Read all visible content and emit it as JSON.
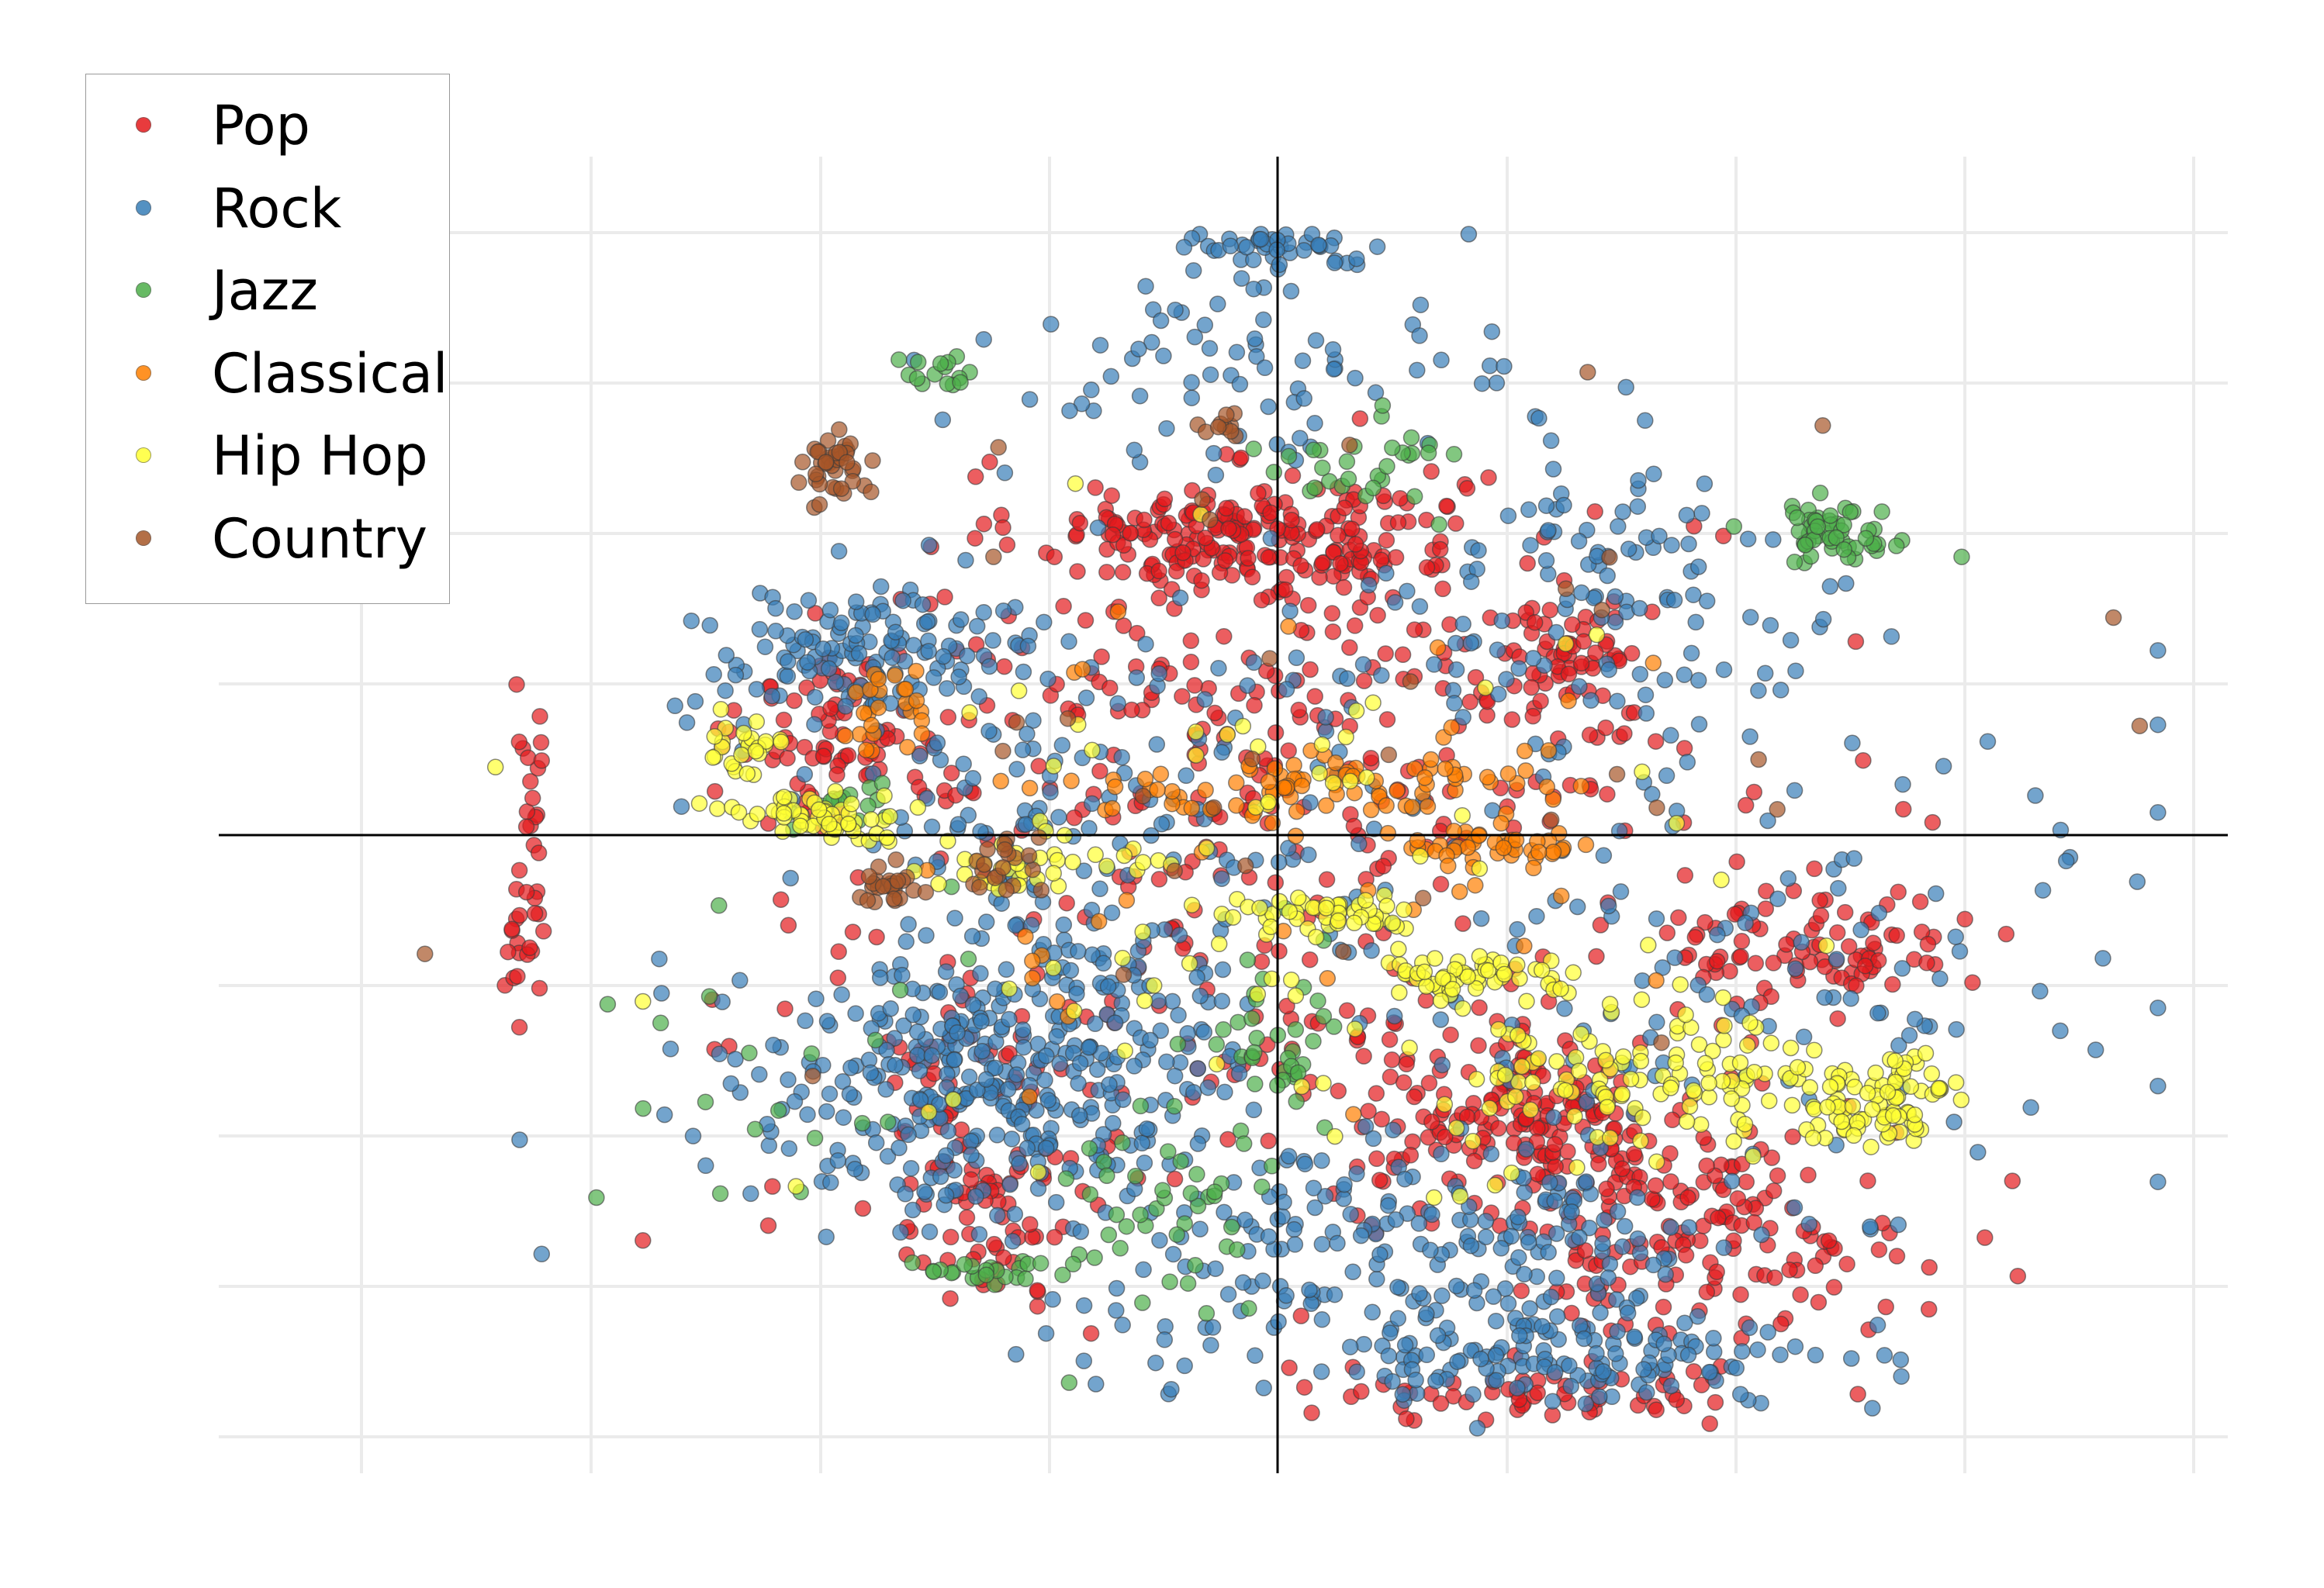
{
  "chart_data": {
    "type": "scatter",
    "title": "",
    "xlabel": "",
    "ylabel": "",
    "xlim": [
      -1,
      1
    ],
    "ylim": [
      -1,
      1
    ],
    "grid": true,
    "axes_through_origin": true,
    "legend_position": "top-left",
    "legend": [
      "Pop",
      "Rock",
      "Jazz",
      "Classical",
      "Hip Hop",
      "Country"
    ],
    "series": [
      {
        "name": "Pop",
        "color": "#e41a1c",
        "clusters": [
          {
            "cx": -0.04,
            "cy": 0.5,
            "rx": 0.22,
            "ry": 0.09,
            "n": 220
          },
          {
            "cx": -0.48,
            "cy": 0.17,
            "rx": 0.1,
            "ry": 0.12,
            "n": 70
          },
          {
            "cx": 0.31,
            "cy": 0.3,
            "rx": 0.09,
            "ry": 0.12,
            "n": 60
          },
          {
            "cx": 0.27,
            "cy": -0.46,
            "rx": 0.18,
            "ry": 0.12,
            "n": 150
          },
          {
            "cx": 0.46,
            "cy": -0.66,
            "rx": 0.22,
            "ry": 0.15,
            "n": 160
          },
          {
            "cx": 0.6,
            "cy": -0.18,
            "rx": 0.13,
            "ry": 0.1,
            "n": 80
          },
          {
            "cx": -0.33,
            "cy": -0.55,
            "rx": 0.1,
            "ry": 0.22,
            "n": 90
          },
          {
            "cx": 0.0,
            "cy": 0.15,
            "rx": 0.45,
            "ry": 0.35,
            "n": 250
          },
          {
            "cx": 0.05,
            "cy": -0.3,
            "rx": 0.55,
            "ry": 0.4,
            "n": 150
          },
          {
            "cx": 0.28,
            "cy": -0.93,
            "rx": 0.25,
            "ry": 0.05,
            "n": 60
          },
          {
            "cx": -0.82,
            "cy": 0.05,
            "rx": 0.02,
            "ry": 0.17,
            "n": 20
          },
          {
            "cx": -0.83,
            "cy": -0.17,
            "rx": 0.02,
            "ry": 0.09,
            "n": 20
          }
        ]
      },
      {
        "name": "Rock",
        "color": "#377eb8",
        "clusters": [
          {
            "cx": -0.45,
            "cy": 0.3,
            "rx": 0.18,
            "ry": 0.1,
            "n": 130
          },
          {
            "cx": -0.38,
            "cy": -0.42,
            "rx": 0.2,
            "ry": 0.18,
            "n": 220
          },
          {
            "cx": -0.22,
            "cy": -0.35,
            "rx": 0.15,
            "ry": 0.35,
            "n": 180
          },
          {
            "cx": 0.15,
            "cy": -0.7,
            "rx": 0.35,
            "ry": 0.18,
            "n": 220
          },
          {
            "cx": 0.3,
            "cy": -0.88,
            "rx": 0.3,
            "ry": 0.06,
            "n": 130
          },
          {
            "cx": 0.4,
            "cy": 0.4,
            "rx": 0.22,
            "ry": 0.25,
            "n": 110
          },
          {
            "cx": -0.05,
            "cy": 0.78,
            "rx": 0.25,
            "ry": 0.15,
            "n": 80
          },
          {
            "cx": -0.02,
            "cy": 0.98,
            "rx": 0.1,
            "ry": 0.03,
            "n": 40
          },
          {
            "cx": 0.5,
            "cy": -0.2,
            "rx": 0.5,
            "ry": 0.45,
            "n": 150
          },
          {
            "cx": -0.2,
            "cy": 0.1,
            "rx": 0.4,
            "ry": 0.35,
            "n": 150
          }
        ]
      },
      {
        "name": "Jazz",
        "color": "#4daf4a",
        "clusters": [
          {
            "cx": -0.12,
            "cy": -0.62,
            "rx": 0.12,
            "ry": 0.18,
            "n": 45
          },
          {
            "cx": -0.32,
            "cy": -0.72,
            "rx": 0.08,
            "ry": 0.02,
            "n": 25
          },
          {
            "cx": 0.01,
            "cy": -0.32,
            "rx": 0.06,
            "ry": 0.14,
            "n": 35
          },
          {
            "cx": 0.61,
            "cy": 0.5,
            "rx": 0.07,
            "ry": 0.05,
            "n": 55
          },
          {
            "cx": -0.37,
            "cy": 0.77,
            "rx": 0.04,
            "ry": 0.03,
            "n": 15
          },
          {
            "cx": 0.1,
            "cy": 0.62,
            "rx": 0.1,
            "ry": 0.08,
            "n": 30
          },
          {
            "cx": -0.48,
            "cy": 0.05,
            "rx": 0.05,
            "ry": 0.04,
            "n": 15
          },
          {
            "cx": -0.55,
            "cy": -0.4,
            "rx": 0.18,
            "ry": 0.25,
            "n": 20
          }
        ]
      },
      {
        "name": "Classical",
        "color": "#ff7f00",
        "clusters": [
          {
            "cx": 0.03,
            "cy": 0.08,
            "rx": 0.22,
            "ry": 0.05,
            "n": 80
          },
          {
            "cx": 0.23,
            "cy": -0.02,
            "rx": 0.1,
            "ry": 0.03,
            "n": 40
          },
          {
            "cx": -0.43,
            "cy": 0.21,
            "rx": 0.05,
            "ry": 0.07,
            "n": 25
          },
          {
            "cx": 0.0,
            "cy": 0.0,
            "rx": 0.45,
            "ry": 0.35,
            "n": 40
          }
        ]
      },
      {
        "name": "Hip Hop",
        "color": "#ffff33",
        "clusters": [
          {
            "cx": 0.42,
            "cy": -0.4,
            "rx": 0.2,
            "ry": 0.1,
            "n": 110
          },
          {
            "cx": 0.66,
            "cy": -0.45,
            "rx": 0.09,
            "ry": 0.06,
            "n": 80
          },
          {
            "cx": 0.22,
            "cy": -0.23,
            "rx": 0.12,
            "ry": 0.03,
            "n": 50
          },
          {
            "cx": 0.06,
            "cy": -0.13,
            "rx": 0.1,
            "ry": 0.03,
            "n": 45
          },
          {
            "cx": -0.5,
            "cy": 0.03,
            "rx": 0.1,
            "ry": 0.03,
            "n": 55
          },
          {
            "cx": -0.58,
            "cy": 0.16,
            "rx": 0.04,
            "ry": 0.06,
            "n": 25
          },
          {
            "cx": -0.28,
            "cy": -0.05,
            "rx": 0.1,
            "ry": 0.04,
            "n": 30
          },
          {
            "cx": 0.0,
            "cy": -0.1,
            "rx": 0.55,
            "ry": 0.45,
            "n": 90
          }
        ]
      },
      {
        "name": "Country",
        "color": "#a65628",
        "clusters": [
          {
            "cx": -0.49,
            "cy": 0.62,
            "rx": 0.03,
            "ry": 0.05,
            "n": 40
          },
          {
            "cx": -0.43,
            "cy": -0.08,
            "rx": 0.03,
            "ry": 0.03,
            "n": 25
          },
          {
            "cx": -0.3,
            "cy": -0.05,
            "rx": 0.03,
            "ry": 0.05,
            "n": 20
          },
          {
            "cx": -0.05,
            "cy": 0.69,
            "rx": 0.03,
            "ry": 0.02,
            "n": 10
          },
          {
            "cx": 0.1,
            "cy": 0.2,
            "rx": 0.7,
            "ry": 0.6,
            "n": 35
          }
        ]
      }
    ]
  }
}
